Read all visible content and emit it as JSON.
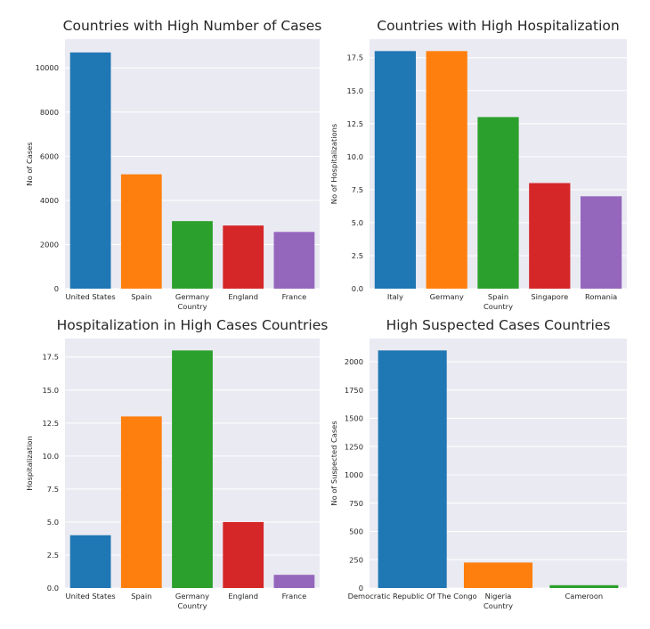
{
  "colors": {
    "panel_background": "#eaeaf2",
    "grid": "#ffffff",
    "palette": [
      "#1f77b4",
      "#ff7f0e",
      "#2ca02c",
      "#d62728",
      "#9467bd"
    ]
  },
  "chart_data": [
    {
      "type": "bar",
      "title": "Countries with High Number of Cases",
      "xlabel": "Country",
      "ylabel": "No of Cases",
      "categories": [
        "United States",
        "Spain",
        "Germany",
        "England",
        "France"
      ],
      "values": [
        10700,
        5180,
        3060,
        2860,
        2570
      ],
      "ylim": [
        0,
        11300
      ],
      "yticks": [
        0,
        2000,
        4000,
        6000,
        8000,
        10000
      ],
      "ytick_labels": [
        "0",
        "2000",
        "4000",
        "6000",
        "8000",
        "10000"
      ],
      "grid": true,
      "legend": "none"
    },
    {
      "type": "bar",
      "title": "Countries with High Hospitalization",
      "xlabel": "Country",
      "ylabel": "No of Hospitalizations",
      "categories": [
        "Italy",
        "Germany",
        "Spain",
        "Singapore",
        "Romania"
      ],
      "values": [
        18,
        18,
        13,
        8,
        7
      ],
      "ylim": [
        0,
        18.9
      ],
      "yticks": [
        0,
        2.5,
        5,
        7.5,
        10,
        12.5,
        15,
        17.5
      ],
      "ytick_labels": [
        "0.0",
        "2.5",
        "5.0",
        "7.5",
        "10.0",
        "12.5",
        "15.0",
        "17.5"
      ],
      "grid": true,
      "legend": "none"
    },
    {
      "type": "bar",
      "title": "Hospitalization in High Cases Countries",
      "xlabel": "Country",
      "ylabel": "Hospitalization",
      "categories": [
        "United States",
        "Spain",
        "Germany",
        "England",
        "France"
      ],
      "values": [
        4,
        13,
        18,
        5,
        1
      ],
      "ylim": [
        0,
        18.9
      ],
      "yticks": [
        0,
        2.5,
        5,
        7.5,
        10,
        12.5,
        15,
        17.5
      ],
      "ytick_labels": [
        "0.0",
        "2.5",
        "5.0",
        "7.5",
        "10.0",
        "12.5",
        "15.0",
        "17.5"
      ],
      "grid": true,
      "legend": "none"
    },
    {
      "type": "bar",
      "title": "High Suspected Cases Countries",
      "xlabel": "Country",
      "ylabel": "No of Suspected Cases",
      "categories": [
        "Democratic Republic Of The Congo",
        "Nigeria",
        "Cameroon"
      ],
      "values": [
        2100,
        225,
        25
      ],
      "ylim": [
        0,
        2205
      ],
      "yticks": [
        0,
        250,
        500,
        750,
        1000,
        1250,
        1500,
        1750,
        2000
      ],
      "ytick_labels": [
        "0",
        "250",
        "500",
        "750",
        "1000",
        "1250",
        "1500",
        "1750",
        "2000"
      ],
      "grid": true,
      "legend": "none"
    }
  ]
}
